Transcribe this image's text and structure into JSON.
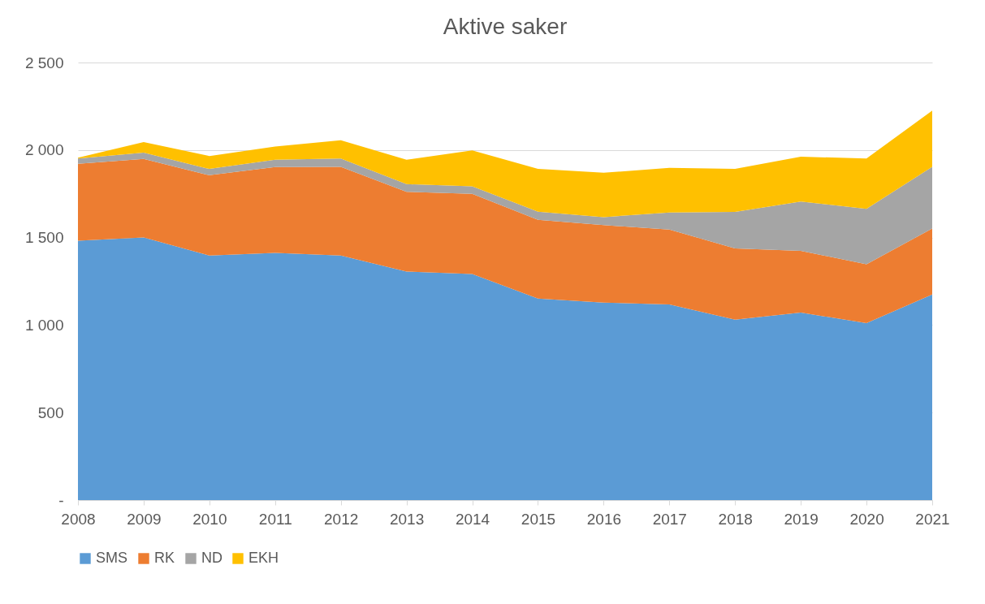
{
  "chart_data": {
    "type": "area",
    "title": "Aktive saker",
    "stacked": true,
    "categories": [
      "2008",
      "2009",
      "2010",
      "2011",
      "2012",
      "2013",
      "2014",
      "2015",
      "2016",
      "2017",
      "2018",
      "2019",
      "2020",
      "2021"
    ],
    "series": [
      {
        "name": "SMS",
        "color": "#5b9bd5",
        "values": [
          1482,
          1500,
          1397,
          1412,
          1397,
          1306,
          1292,
          1152,
          1128,
          1118,
          1031,
          1071,
          1011,
          1175
        ]
      },
      {
        "name": "RK",
        "color": "#ed7d31",
        "values": [
          439,
          449,
          459,
          491,
          507,
          455,
          458,
          449,
          443,
          428,
          407,
          353,
          336,
          377
        ]
      },
      {
        "name": "ND",
        "color": "#a5a5a5",
        "values": [
          30,
          36,
          36,
          41,
          47,
          44,
          43,
          47,
          46,
          97,
          208,
          282,
          317,
          352
        ]
      },
      {
        "name": "EKH",
        "color": "#ffc000",
        "values": [
          5,
          60,
          74,
          76,
          105,
          139,
          205,
          244,
          253,
          255,
          246,
          256,
          287,
          321
        ]
      }
    ],
    "ylim": [
      0,
      2500
    ],
    "yticks": [
      {
        "value": 0,
        "label": "-"
      },
      500,
      {
        "value": 1000,
        "label": "1 000"
      },
      {
        "value": 1500,
        "label": "1 500"
      },
      {
        "value": 2000,
        "label": "2 000"
      },
      {
        "value": 2500,
        "label": "2 500"
      }
    ],
    "grid": "y",
    "legend": "bottom"
  }
}
